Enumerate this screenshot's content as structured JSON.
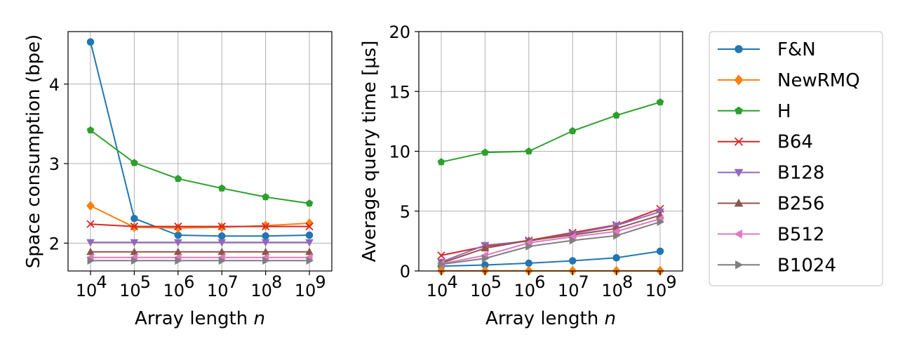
{
  "chart_data": [
    {
      "type": "line",
      "xlabel": "Array length n",
      "ylabel": "Space consumption (bpe)",
      "x": [
        4,
        5,
        6,
        7,
        8,
        9
      ],
      "x_tick_labels": [
        "4",
        "5",
        "6",
        "7",
        "8",
        "9"
      ],
      "x_scale": "log10",
      "xlim": [
        4,
        9
      ],
      "ylim": [
        1.65,
        4.66
      ],
      "y_ticks": [
        2,
        3,
        4
      ],
      "y_tick_labels": [
        "2",
        "3",
        "4"
      ],
      "grid": true,
      "series": [
        {
          "name": "F&N",
          "values": [
            4.53,
            2.31,
            2.1,
            2.09,
            2.09,
            2.1
          ]
        },
        {
          "name": "NewRMQ",
          "values": [
            2.47,
            2.2,
            2.19,
            2.2,
            2.22,
            2.25
          ]
        },
        {
          "name": "H",
          "values": [
            3.42,
            3.01,
            2.81,
            2.69,
            2.58,
            2.5
          ]
        },
        {
          "name": "B64",
          "values": [
            2.24,
            2.21,
            2.21,
            2.21,
            2.21,
            2.21
          ]
        },
        {
          "name": "B128",
          "values": [
            2.01,
            2.01,
            2.01,
            2.01,
            2.01,
            2.01
          ]
        },
        {
          "name": "B256",
          "values": [
            1.89,
            1.89,
            1.89,
            1.89,
            1.89,
            1.89
          ]
        },
        {
          "name": "B512",
          "values": [
            1.82,
            1.82,
            1.82,
            1.82,
            1.82,
            1.82
          ]
        },
        {
          "name": "B1024",
          "values": [
            1.78,
            1.78,
            1.78,
            1.78,
            1.78,
            1.78
          ]
        }
      ]
    },
    {
      "type": "line",
      "xlabel": "Array length n",
      "ylabel": "Average query time [µs]",
      "x": [
        4,
        5,
        6,
        7,
        8,
        9
      ],
      "x_tick_labels": [
        "4",
        "5",
        "6",
        "7",
        "8",
        "9"
      ],
      "x_scale": "log10",
      "xlim": [
        4,
        9
      ],
      "ylim": [
        0,
        20
      ],
      "y_ticks": [
        0,
        5,
        10,
        15,
        20
      ],
      "y_tick_labels": [
        "0",
        "5",
        "10",
        "15",
        "20"
      ],
      "grid": true,
      "series": [
        {
          "name": "F&N",
          "values": [
            0.4,
            0.5,
            0.65,
            0.85,
            1.1,
            1.65
          ]
        },
        {
          "name": "NewRMQ",
          "values": [
            0.02,
            0.02,
            0.02,
            0.02,
            0.02,
            0.02
          ]
        },
        {
          "name": "H",
          "values": [
            9.1,
            9.9,
            10.0,
            11.7,
            13.0,
            14.1
          ]
        },
        {
          "name": "B64",
          "values": [
            1.3,
            2.05,
            2.55,
            3.2,
            3.85,
            5.2
          ]
        },
        {
          "name": "B128",
          "values": [
            0.75,
            2.15,
            2.5,
            3.1,
            3.8,
            4.95
          ]
        },
        {
          "name": "B256",
          "values": [
            0.65,
            1.9,
            2.55,
            3.0,
            3.55,
            4.65
          ]
        },
        {
          "name": "B512",
          "values": [
            0.6,
            1.3,
            2.35,
            2.85,
            3.3,
            4.35
          ]
        },
        {
          "name": "B1024",
          "values": [
            0.55,
            1.05,
            2.05,
            2.55,
            2.95,
            4.1
          ]
        }
      ]
    }
  ],
  "legend": {
    "placement": "right",
    "entries": [
      {
        "name": "F&N",
        "color": "#1f77b4",
        "marker": "circle"
      },
      {
        "name": "NewRMQ",
        "color": "#ff7f0e",
        "marker": "diamond"
      },
      {
        "name": "H",
        "color": "#2ca02c",
        "marker": "pentagon"
      },
      {
        "name": "B64",
        "color": "#d62728",
        "marker": "x"
      },
      {
        "name": "B128",
        "color": "#9467bd",
        "marker": "triangle-down"
      },
      {
        "name": "B256",
        "color": "#8c564b",
        "marker": "triangle-up"
      },
      {
        "name": "B512",
        "color": "#e377c2",
        "marker": "triangle-left"
      },
      {
        "name": "B1024",
        "color": "#7f7f7f",
        "marker": "triangle-right"
      }
    ]
  }
}
